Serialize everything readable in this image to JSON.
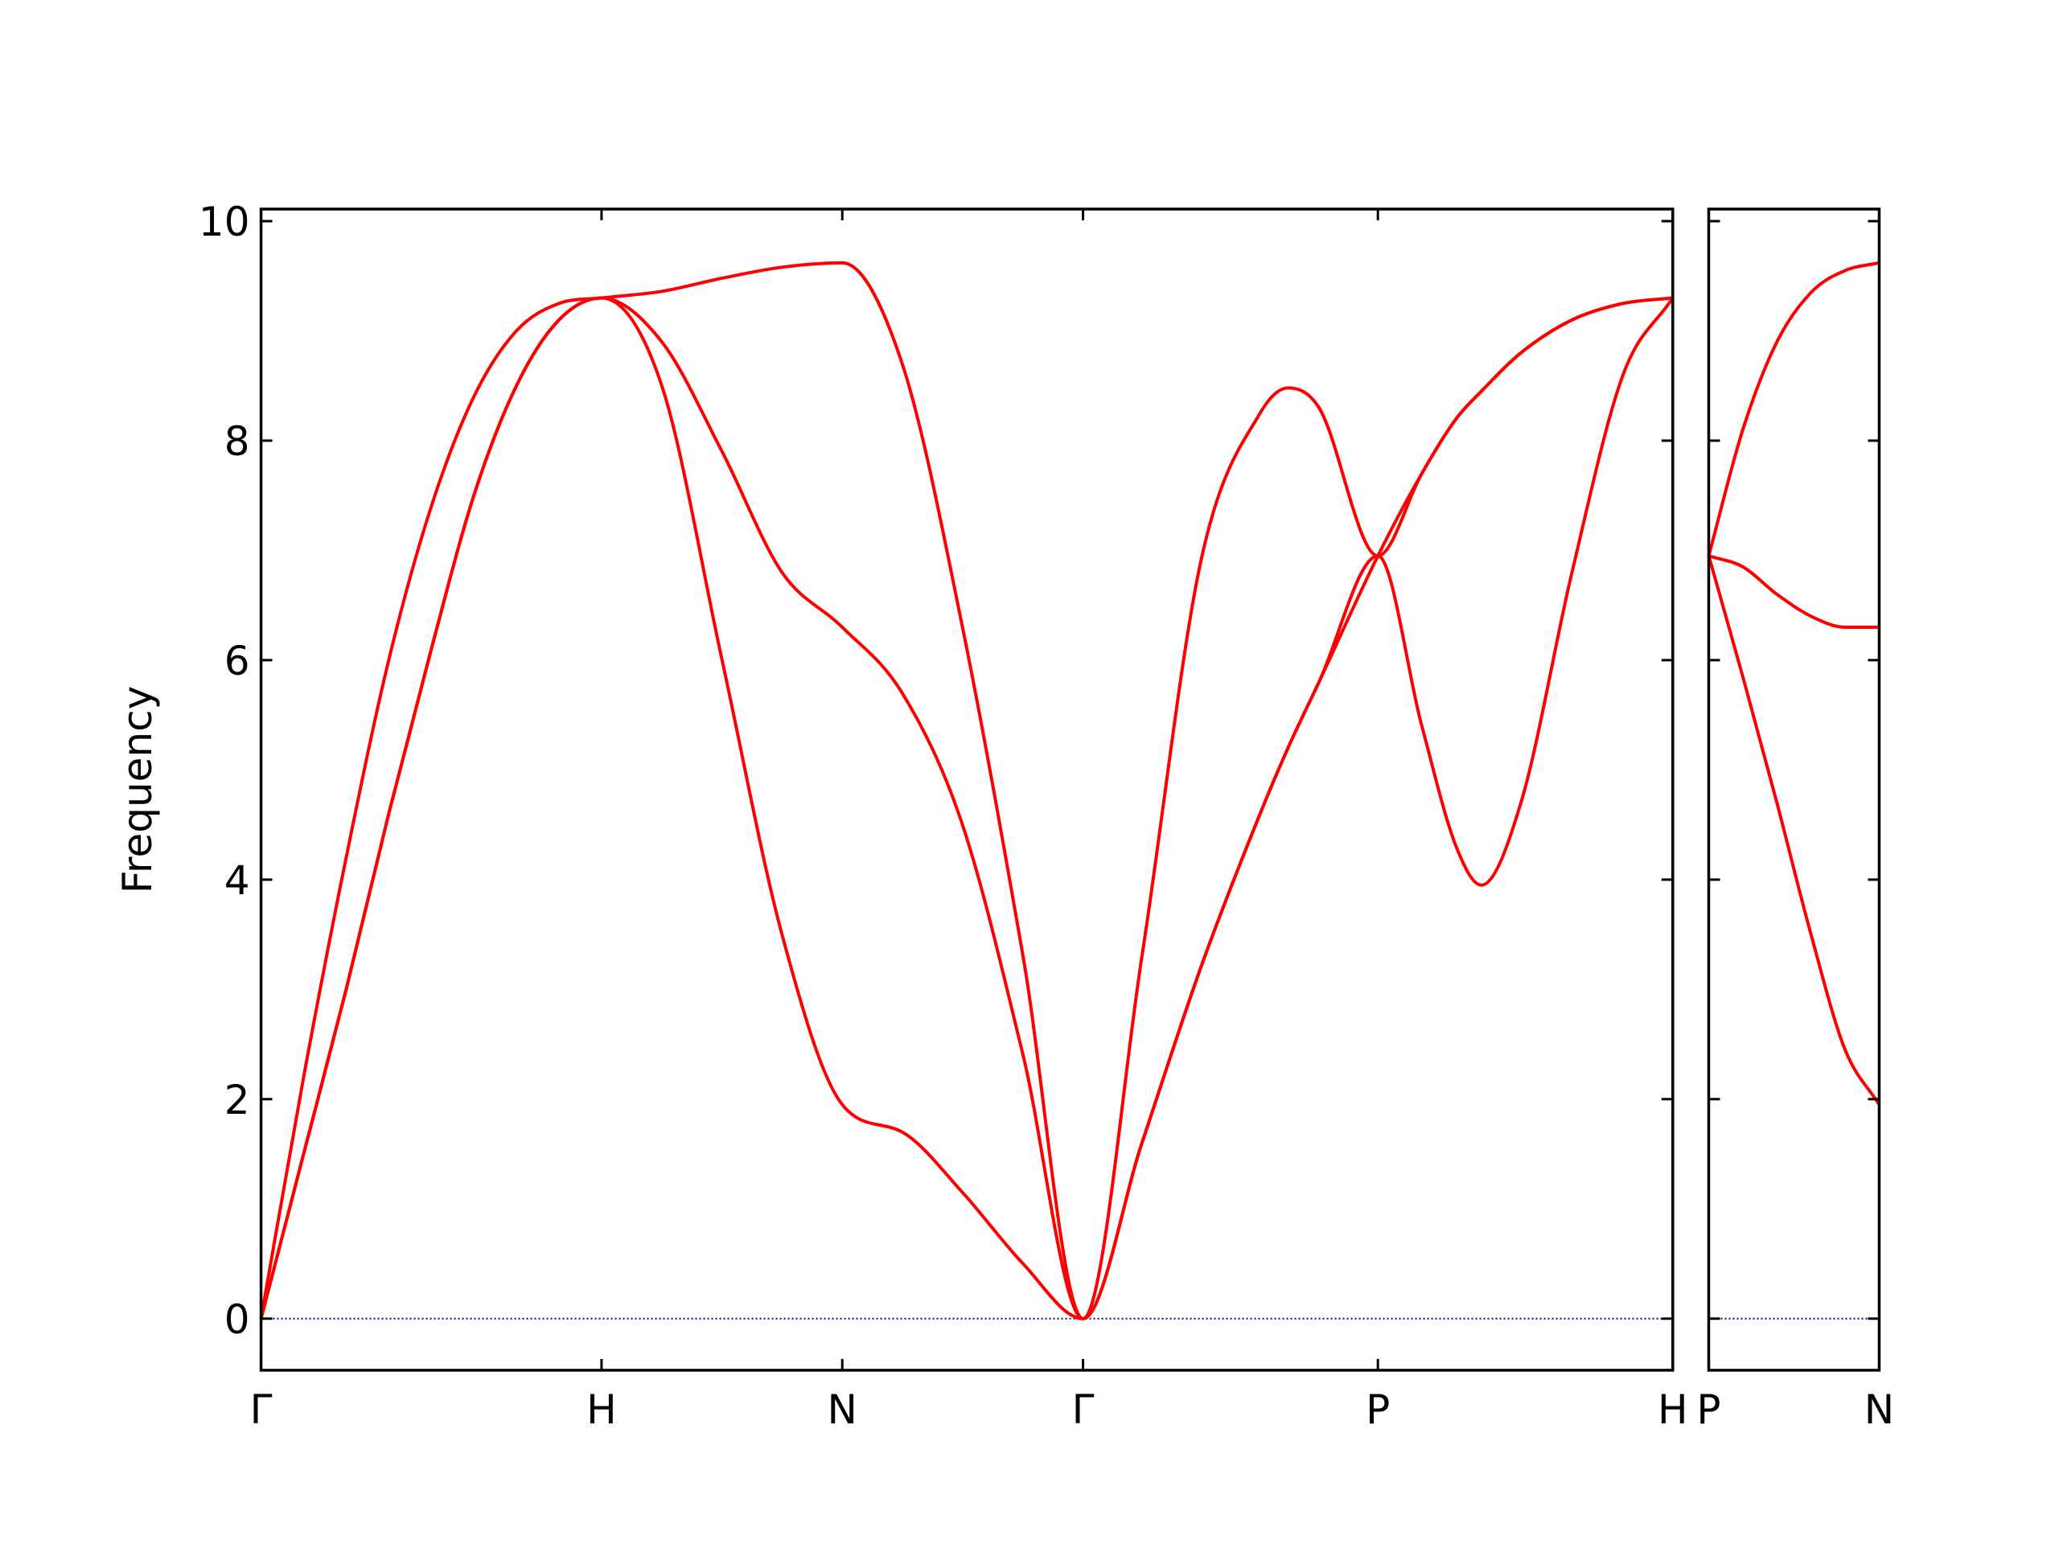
{
  "chart_data": [
    {
      "type": "line",
      "ylabel": "Frequency",
      "x": [
        0,
        0.125,
        0.25,
        0.375,
        0.5,
        0.625,
        0.75,
        0.875,
        1,
        1.177,
        1.354,
        1.53,
        1.707,
        1.883,
        2.06,
        2.238,
        2.414,
        2.587,
        2.76,
        2.934,
        3.016,
        3.107,
        3.28,
        3.409,
        3.51,
        3.584,
        3.7,
        3.85,
        4.0,
        4.146
      ],
      "series": [
        {
          "color": "#ff0000",
          "values": [
            0,
            1.5,
            3.0,
            4.6,
            6.1,
            7.5,
            8.5,
            9.1,
            9.3,
            8.5,
            6.0,
            3.5,
            1.95,
            1.7,
            1.15,
            0.5,
            0,
            1.6,
            3.2,
            4.6,
            5.2,
            5.8,
            6.95,
            5.4,
            4.3,
            3.95,
            4.7,
            6.8,
            8.6,
            9.3
          ]
        },
        {
          "color": "#ff0000",
          "values": [
            0,
            1.5,
            3.0,
            4.6,
            6.1,
            7.5,
            8.5,
            9.1,
            9.3,
            8.9,
            7.9,
            6.8,
            6.3,
            5.7,
            4.5,
            2.4,
            0,
            1.6,
            3.2,
            4.6,
            5.2,
            5.8,
            6.95,
            7.7,
            8.2,
            8.45,
            8.8,
            9.1,
            9.25,
            9.3
          ]
        },
        {
          "color": "#ff0000",
          "values": [
            0,
            2.2,
            4.2,
            6.0,
            7.4,
            8.4,
            9.0,
            9.25,
            9.3,
            9.36,
            9.48,
            9.58,
            9.62,
            8.7,
            6.3,
            3.3,
            0,
            3.3,
            6.9,
            8.25,
            8.48,
            8.3,
            6.95,
            7.7,
            8.2,
            8.45,
            8.8,
            9.1,
            9.25,
            9.3
          ]
        }
      ],
      "xlim": [
        0,
        4.146
      ],
      "xticks": [
        {
          "value": 0,
          "label": "Γ"
        },
        {
          "value": 1,
          "label": "H"
        },
        {
          "value": 1.707,
          "label": "N"
        },
        {
          "value": 2.414,
          "label": "Γ"
        },
        {
          "value": 3.28,
          "label": "P"
        },
        {
          "value": 4.146,
          "label": "H"
        }
      ],
      "ylim": [
        -0.47,
        10.11
      ],
      "yticks": [
        0,
        2,
        4,
        6,
        8,
        10
      ],
      "hlines": [
        0
      ],
      "hline_color": "#0000aa"
    },
    {
      "type": "line",
      "x": [
        0,
        0.1,
        0.2,
        0.3,
        0.4,
        0.5
      ],
      "series": [
        {
          "color": "#ff0000",
          "values": [
            6.95,
            5.85,
            4.7,
            3.5,
            2.45,
            1.95
          ]
        },
        {
          "color": "#ff0000",
          "values": [
            6.95,
            6.85,
            6.6,
            6.4,
            6.3,
            6.3
          ]
        },
        {
          "color": "#ff0000",
          "values": [
            6.95,
            8.1,
            8.9,
            9.35,
            9.55,
            9.62
          ]
        }
      ],
      "xlim": [
        0,
        0.5
      ],
      "xticks": [
        {
          "value": 0,
          "label": "P"
        },
        {
          "value": 0.5,
          "label": "N"
        }
      ],
      "ylim": [
        -0.47,
        10.11
      ],
      "yticks": [
        0,
        2,
        4,
        6,
        8,
        10
      ],
      "ytick_labels": false,
      "hlines": [
        0
      ],
      "hline_color": "#0000aa"
    }
  ]
}
